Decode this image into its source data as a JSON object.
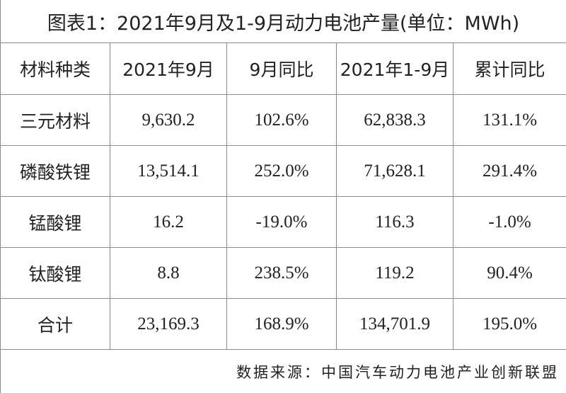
{
  "header": {
    "title": "图表1：2021年9月及1-9月动力电池产量(单位：MWh)"
  },
  "table": {
    "columns": [
      "材料种类",
      "2021年9月",
      "9月同比",
      "2021年1-9月",
      "累计同比"
    ],
    "rows": [
      [
        "三元材料",
        "9,630.2",
        "102.6%",
        "62,838.3",
        "131.1%"
      ],
      [
        "磷酸铁锂",
        "13,514.1",
        "252.0%",
        "71,628.1",
        "291.4%"
      ],
      [
        "锰酸锂",
        "16.2",
        "-19.0%",
        "116.3",
        "-1.0%"
      ],
      [
        "钛酸锂",
        "8.8",
        "238.5%",
        "119.2",
        "90.4%"
      ],
      [
        "合计",
        "23,169.3",
        "168.9%",
        "134,701.9",
        "195.0%"
      ]
    ]
  },
  "footer": {
    "source": "数据来源：中国汽车动力电池产业创新联盟"
  }
}
